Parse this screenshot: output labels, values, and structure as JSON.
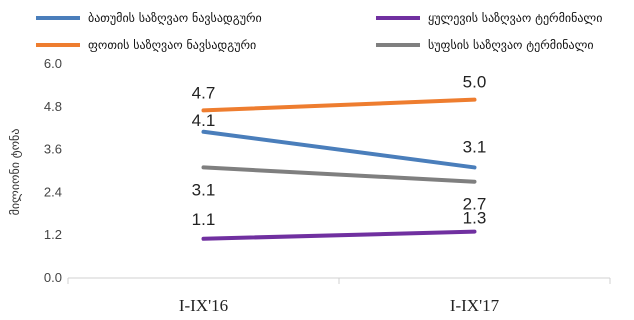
{
  "chart_data": {
    "type": "line",
    "title": "",
    "xlabel": "",
    "ylabel": "მილიონი ტონა",
    "categories": [
      "I-IX'16",
      "I-IX'17"
    ],
    "ylim": [
      0,
      6
    ],
    "yticks": [
      "0.0",
      "1.2",
      "2.4",
      "3.6",
      "4.8",
      "6.0"
    ],
    "grid": false,
    "legend_position": "top",
    "series": [
      {
        "name": "ბათუმის საზღვაო ნავსადგური",
        "values": [
          4.1,
          3.1
        ],
        "labels": [
          "4.1",
          "3.1"
        ],
        "color": "#4a7ebb"
      },
      {
        "name": "ფოთის საზღვაო ნავსადგური",
        "values": [
          4.7,
          5.0
        ],
        "labels": [
          "4.7",
          "5.0"
        ],
        "color": "#ee7d2f"
      },
      {
        "name": "ყულევის საზღვაო ტერმინალი",
        "values": [
          1.1,
          1.3
        ],
        "labels": [
          "1.1",
          "1.3"
        ],
        "color": "#7030a0"
      },
      {
        "name": "სუფსის საზღვაო ტერმინალი",
        "values": [
          3.1,
          2.7
        ],
        "labels": [
          "3.1",
          "2.7"
        ],
        "color": "#7f7f7f"
      }
    ]
  }
}
